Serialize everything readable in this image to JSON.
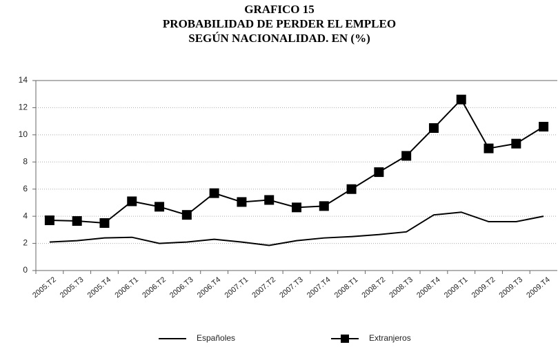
{
  "chart_data": {
    "type": "line",
    "title": [
      "GRAFICO 15",
      "PROBABILIDAD DE PERDER EL EMPLEO",
      "SEGÚN NACIONALIDAD.  EN (%)"
    ],
    "categories": [
      "2005.T2",
      "2005.T3",
      "2005.T4",
      "2006.T1",
      "2006.T2",
      "2006.T3",
      "2006.T4",
      "2007.T1",
      "2007.T2",
      "2007.T3",
      "2007.T4",
      "2008.T1",
      "2008.T2",
      "2008.T3",
      "2008.T4",
      "2009.T1",
      "2009.T2",
      "2009.T3",
      "2009.T4"
    ],
    "series": [
      {
        "name": "Españoles",
        "color": "#000000",
        "marker": false,
        "values": [
          2.1,
          2.2,
          2.4,
          2.45,
          2.0,
          2.1,
          2.3,
          2.1,
          1.85,
          2.2,
          2.4,
          2.5,
          2.65,
          2.85,
          4.1,
          4.3,
          3.6,
          3.6,
          4.0
        ]
      },
      {
        "name": "Extranjeros",
        "color": "#000000",
        "marker": true,
        "values": [
          3.7,
          3.65,
          3.5,
          5.1,
          4.7,
          4.1,
          5.7,
          5.05,
          5.2,
          4.65,
          4.75,
          6.0,
          7.25,
          8.45,
          10.5,
          12.6,
          9.0,
          9.35,
          10.6
        ]
      }
    ],
    "ylim": [
      0,
      14
    ],
    "yticks": [
      0,
      2,
      4,
      6,
      8,
      10,
      12,
      14
    ],
    "grid": true,
    "legend": "bottom"
  }
}
